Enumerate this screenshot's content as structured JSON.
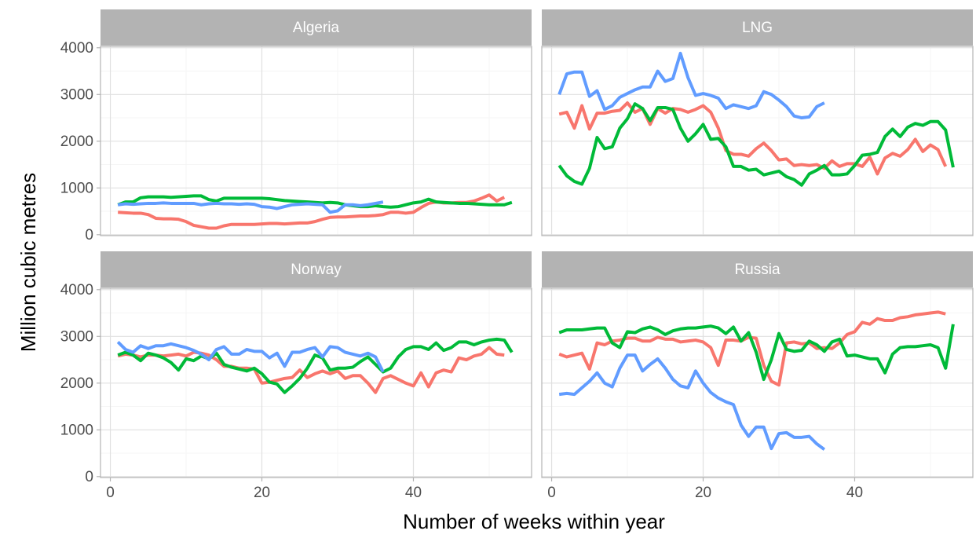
{
  "x_label": "Number of weeks within year",
  "y_label": "Million cubic metres",
  "chart_data": [
    {
      "type": "line",
      "title": "Algeria",
      "x": [
        1,
        2,
        3,
        4,
        5,
        6,
        7,
        8,
        9,
        10,
        11,
        12,
        13,
        14,
        15,
        16,
        17,
        18,
        19,
        20,
        21,
        22,
        23,
        24,
        25,
        26,
        27,
        28,
        29,
        30,
        31,
        32,
        33,
        34,
        35,
        36,
        37,
        38,
        39,
        40,
        41,
        42,
        43,
        44,
        45,
        46,
        47,
        48,
        49,
        50,
        51,
        52,
        53
      ],
      "xlim": [
        -1.3,
        55.6
      ],
      "xticks": [
        0,
        20,
        40
      ],
      "ylim": [
        -20,
        4030
      ],
      "yticks": [
        0,
        1000,
        2000,
        3000,
        4000
      ],
      "grid": true,
      "series": [
        {
          "color": "#F8766D",
          "values": [
            480,
            470,
            460,
            460,
            430,
            350,
            340,
            340,
            330,
            280,
            200,
            170,
            140,
            140,
            190,
            220,
            220,
            220,
            220,
            230,
            240,
            240,
            230,
            240,
            250,
            250,
            280,
            330,
            370,
            380,
            380,
            390,
            400,
            400,
            410,
            430,
            480,
            480,
            460,
            480,
            580,
            670,
            700,
            680,
            680,
            690,
            690,
            720,
            780,
            850,
            720,
            800,
            null
          ]
        },
        {
          "color": "#00BA38",
          "values": [
            640,
            700,
            700,
            790,
            810,
            810,
            810,
            800,
            810,
            820,
            830,
            830,
            750,
            720,
            780,
            780,
            780,
            780,
            780,
            780,
            770,
            750,
            730,
            720,
            710,
            700,
            690,
            680,
            690,
            680,
            640,
            620,
            600,
            600,
            620,
            600,
            590,
            600,
            640,
            680,
            700,
            760,
            700,
            690,
            680,
            670,
            670,
            660,
            650,
            640,
            640,
            640,
            690
          ]
        },
        {
          "color": "#619CFF",
          "values": [
            640,
            660,
            650,
            660,
            670,
            670,
            680,
            670,
            670,
            670,
            670,
            640,
            660,
            670,
            660,
            660,
            650,
            660,
            650,
            600,
            590,
            560,
            600,
            640,
            650,
            660,
            650,
            640,
            480,
            510,
            640,
            640,
            620,
            640,
            670,
            700,
            null,
            null,
            null,
            null,
            null,
            null,
            null,
            null,
            null,
            null,
            null,
            null,
            null,
            null,
            null,
            null,
            null
          ]
        }
      ]
    },
    {
      "type": "line",
      "title": "LNG",
      "x": [
        1,
        2,
        3,
        4,
        5,
        6,
        7,
        8,
        9,
        10,
        11,
        12,
        13,
        14,
        15,
        16,
        17,
        18,
        19,
        20,
        21,
        22,
        23,
        24,
        25,
        26,
        27,
        28,
        29,
        30,
        31,
        32,
        33,
        34,
        35,
        36,
        37,
        38,
        39,
        40,
        41,
        42,
        43,
        44,
        45,
        46,
        47,
        48,
        49,
        50,
        51,
        52,
        53
      ],
      "xlim": [
        -1.3,
        55.6
      ],
      "xticks": [
        0,
        20,
        40
      ],
      "ylim": [
        -20,
        4030
      ],
      "yticks": [
        0,
        1000,
        2000,
        3000,
        4000
      ],
      "grid": true,
      "series": [
        {
          "color": "#F8766D",
          "values": [
            2580,
            2620,
            2280,
            2760,
            2260,
            2600,
            2600,
            2640,
            2660,
            2820,
            2620,
            2700,
            2360,
            2700,
            2600,
            2700,
            2680,
            2620,
            2680,
            2760,
            2620,
            2280,
            1800,
            1720,
            1720,
            1680,
            1840,
            1960,
            1800,
            1600,
            1620,
            1480,
            1500,
            1480,
            1500,
            1420,
            1580,
            1460,
            1520,
            1520,
            1460,
            1660,
            1300,
            1640,
            1740,
            1680,
            1820,
            2040,
            1780,
            1920,
            1820,
            1460,
            null
          ]
        },
        {
          "color": "#00BA38",
          "values": [
            1480,
            1260,
            1140,
            1080,
            1420,
            2080,
            1840,
            1880,
            2280,
            2480,
            2800,
            2700,
            2440,
            2720,
            2720,
            2680,
            2280,
            2000,
            2160,
            2360,
            2040,
            2060,
            1880,
            1460,
            1460,
            1380,
            1400,
            1280,
            1320,
            1360,
            1240,
            1180,
            1060,
            1300,
            1380,
            1480,
            1280,
            1280,
            1300,
            1480,
            1700,
            1720,
            1760,
            2100,
            2260,
            2100,
            2300,
            2380,
            2340,
            2420,
            2420,
            2240,
            1440
          ]
        },
        {
          "color": "#619CFF",
          "values": [
            3000,
            3440,
            3480,
            3480,
            2960,
            3080,
            2680,
            2760,
            2940,
            3020,
            3100,
            3160,
            3160,
            3500,
            3280,
            3340,
            3880,
            3360,
            2980,
            3020,
            2980,
            2920,
            2700,
            2780,
            2740,
            2700,
            2760,
            3060,
            3000,
            2880,
            2740,
            2540,
            2500,
            2520,
            2740,
            2820,
            null,
            null,
            null,
            null,
            null,
            null,
            null,
            null,
            null,
            null,
            null,
            null,
            null,
            null,
            null,
            null,
            null
          ]
        }
      ]
    },
    {
      "type": "line",
      "title": "Norway",
      "x": [
        1,
        2,
        3,
        4,
        5,
        6,
        7,
        8,
        9,
        10,
        11,
        12,
        13,
        14,
        15,
        16,
        17,
        18,
        19,
        20,
        21,
        22,
        23,
        24,
        25,
        26,
        27,
        28,
        29,
        30,
        31,
        32,
        33,
        34,
        35,
        36,
        37,
        38,
        39,
        40,
        41,
        42,
        43,
        44,
        45,
        46,
        47,
        48,
        49,
        50,
        51,
        52,
        53
      ],
      "xlim": [
        -1.3,
        55.6
      ],
      "xticks": [
        0,
        20,
        40
      ],
      "ylim": [
        -20,
        4030
      ],
      "yticks": [
        0,
        1000,
        2000,
        3000,
        4000
      ],
      "grid": true,
      "series": [
        {
          "color": "#F8766D",
          "values": [
            2580,
            2620,
            2600,
            2560,
            2600,
            2600,
            2580,
            2600,
            2620,
            2580,
            2660,
            2640,
            2600,
            2500,
            2360,
            2360,
            2320,
            2320,
            2300,
            2000,
            2020,
            2060,
            2100,
            2120,
            2280,
            2120,
            2200,
            2260,
            2200,
            2260,
            2100,
            2160,
            2160,
            2000,
            1800,
            2100,
            2160,
            2080,
            2000,
            1940,
            2220,
            1920,
            2220,
            2280,
            2240,
            2540,
            2500,
            2580,
            2620,
            2760,
            2620,
            2600,
            null
          ]
        },
        {
          "color": "#00BA38",
          "values": [
            2600,
            2660,
            2600,
            2480,
            2640,
            2600,
            2540,
            2440,
            2280,
            2520,
            2480,
            2580,
            2520,
            2640,
            2400,
            2340,
            2300,
            2260,
            2320,
            2200,
            2020,
            1980,
            1800,
            1940,
            2100,
            2320,
            2600,
            2540,
            2280,
            2320,
            2320,
            2340,
            2460,
            2560,
            2400,
            2240,
            2320,
            2560,
            2720,
            2780,
            2780,
            2720,
            2860,
            2700,
            2760,
            2880,
            2880,
            2820,
            2880,
            2920,
            2940,
            2920,
            2660
          ]
        },
        {
          "color": "#619CFF",
          "values": [
            2880,
            2720,
            2660,
            2800,
            2740,
            2800,
            2800,
            2840,
            2800,
            2760,
            2700,
            2620,
            2500,
            2720,
            2780,
            2620,
            2620,
            2720,
            2680,
            2680,
            2540,
            2640,
            2360,
            2660,
            2660,
            2720,
            2760,
            2560,
            2780,
            2760,
            2660,
            2620,
            2580,
            2640,
            2560,
            2240,
            null,
            null,
            null,
            null,
            null,
            null,
            null,
            null,
            null,
            null,
            null,
            null,
            null,
            null,
            null,
            null,
            null
          ]
        }
      ]
    },
    {
      "type": "line",
      "title": "Russia",
      "x": [
        1,
        2,
        3,
        4,
        5,
        6,
        7,
        8,
        9,
        10,
        11,
        12,
        13,
        14,
        15,
        16,
        17,
        18,
        19,
        20,
        21,
        22,
        23,
        24,
        25,
        26,
        27,
        28,
        29,
        30,
        31,
        32,
        33,
        34,
        35,
        36,
        37,
        38,
        39,
        40,
        41,
        42,
        43,
        44,
        45,
        46,
        47,
        48,
        49,
        50,
        51,
        52,
        53
      ],
      "xlim": [
        -1.3,
        55.6
      ],
      "xticks": [
        0,
        20,
        40
      ],
      "ylim": [
        -20,
        4030
      ],
      "yticks": [
        0,
        1000,
        2000,
        3000,
        4000
      ],
      "grid": true,
      "series": [
        {
          "color": "#F8766D",
          "values": [
            2620,
            2560,
            2600,
            2640,
            2300,
            2860,
            2820,
            2900,
            2920,
            2960,
            2960,
            2900,
            2900,
            2980,
            2940,
            2940,
            2880,
            2900,
            2920,
            2880,
            2760,
            2380,
            2920,
            2920,
            2900,
            2980,
            2960,
            2380,
            2040,
            1960,
            2860,
            2880,
            2840,
            2860,
            2740,
            2760,
            2740,
            2860,
            3040,
            3100,
            3300,
            3260,
            3380,
            3340,
            3340,
            3400,
            3420,
            3460,
            3480,
            3500,
            3520,
            3480,
            null
          ]
        },
        {
          "color": "#00BA38",
          "values": [
            3080,
            3140,
            3140,
            3140,
            3160,
            3180,
            3180,
            2860,
            2760,
            3100,
            3080,
            3160,
            3200,
            3140,
            3040,
            3120,
            3160,
            3180,
            3180,
            3200,
            3220,
            3180,
            3060,
            3200,
            2900,
            3080,
            2660,
            2080,
            2500,
            3060,
            2720,
            2680,
            2700,
            2900,
            2820,
            2680,
            2880,
            2940,
            2580,
            2600,
            2560,
            2520,
            2520,
            2220,
            2620,
            2760,
            2780,
            2780,
            2800,
            2820,
            2760,
            2320,
            3260
          ]
        },
        {
          "color": "#619CFF",
          "values": [
            1760,
            1780,
            1760,
            1900,
            2040,
            2220,
            2000,
            1920,
            2320,
            2600,
            2600,
            2260,
            2400,
            2520,
            2320,
            2080,
            1940,
            1900,
            2260,
            2000,
            1800,
            1680,
            1600,
            1540,
            1100,
            860,
            1060,
            1060,
            600,
            920,
            940,
            840,
            840,
            860,
            700,
            580,
            null,
            null,
            null,
            null,
            null,
            null,
            null,
            null,
            null,
            null,
            null,
            null,
            null,
            null,
            null,
            null,
            null
          ]
        }
      ]
    }
  ]
}
